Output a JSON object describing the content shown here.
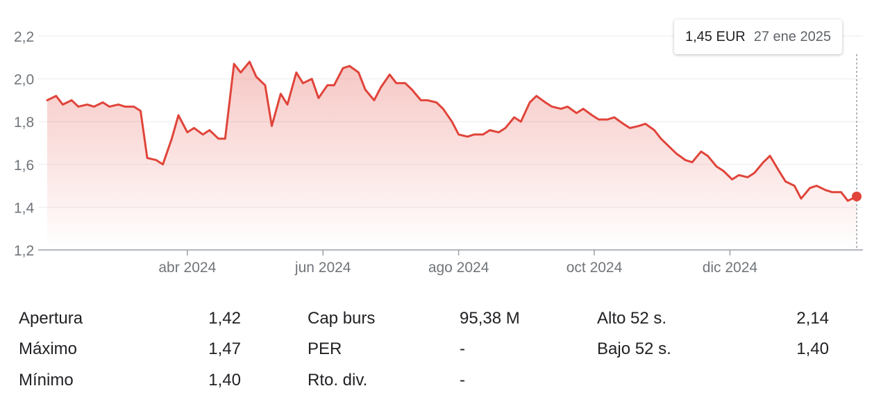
{
  "chart_data": {
    "type": "area",
    "x_start": "2024-01-29",
    "x_end": "2025-01-27",
    "y_ticks": [
      "1,2",
      "1,4",
      "1,6",
      "1,8",
      "2,0",
      "2,2"
    ],
    "y_tick_values": [
      1.2,
      1.4,
      1.6,
      1.8,
      2.0,
      2.2
    ],
    "ylim": [
      1.2,
      2.2
    ],
    "x_ticks": [
      "abr 2024",
      "jun 2024",
      "ago 2024",
      "oct 2024",
      "dic 2024"
    ],
    "x_tick_dates": [
      "2024-04-01",
      "2024-06-01",
      "2024-08-01",
      "2024-10-01",
      "2024-12-01"
    ],
    "grid": true,
    "line_color": "#e0443a",
    "series": [
      {
        "points": [
          [
            "2024-01-29",
            1.9
          ],
          [
            "2024-02-02",
            1.92
          ],
          [
            "2024-02-05",
            1.88
          ],
          [
            "2024-02-09",
            1.9
          ],
          [
            "2024-02-12",
            1.87
          ],
          [
            "2024-02-16",
            1.88
          ],
          [
            "2024-02-19",
            1.87
          ],
          [
            "2024-02-23",
            1.89
          ],
          [
            "2024-02-26",
            1.87
          ],
          [
            "2024-03-01",
            1.88
          ],
          [
            "2024-03-04",
            1.87
          ],
          [
            "2024-03-08",
            1.87
          ],
          [
            "2024-03-11",
            1.85
          ],
          [
            "2024-03-14",
            1.63
          ],
          [
            "2024-03-18",
            1.62
          ],
          [
            "2024-03-21",
            1.6
          ],
          [
            "2024-03-25",
            1.72
          ],
          [
            "2024-03-28",
            1.83
          ],
          [
            "2024-04-01",
            1.75
          ],
          [
            "2024-04-04",
            1.77
          ],
          [
            "2024-04-08",
            1.74
          ],
          [
            "2024-04-11",
            1.76
          ],
          [
            "2024-04-15",
            1.72
          ],
          [
            "2024-04-18",
            1.72
          ],
          [
            "2024-04-22",
            2.07
          ],
          [
            "2024-04-25",
            2.03
          ],
          [
            "2024-04-29",
            2.08
          ],
          [
            "2024-05-02",
            2.01
          ],
          [
            "2024-05-06",
            1.97
          ],
          [
            "2024-05-09",
            1.78
          ],
          [
            "2024-05-13",
            1.93
          ],
          [
            "2024-05-16",
            1.88
          ],
          [
            "2024-05-20",
            2.03
          ],
          [
            "2024-05-23",
            1.98
          ],
          [
            "2024-05-27",
            2.0
          ],
          [
            "2024-05-30",
            1.91
          ],
          [
            "2024-06-03",
            1.97
          ],
          [
            "2024-06-06",
            1.97
          ],
          [
            "2024-06-10",
            2.05
          ],
          [
            "2024-06-13",
            2.06
          ],
          [
            "2024-06-17",
            2.03
          ],
          [
            "2024-06-20",
            1.95
          ],
          [
            "2024-06-24",
            1.9
          ],
          [
            "2024-06-27",
            1.96
          ],
          [
            "2024-07-01",
            2.02
          ],
          [
            "2024-07-04",
            1.98
          ],
          [
            "2024-07-08",
            1.98
          ],
          [
            "2024-07-11",
            1.95
          ],
          [
            "2024-07-15",
            1.9
          ],
          [
            "2024-07-18",
            1.9
          ],
          [
            "2024-07-22",
            1.89
          ],
          [
            "2024-07-25",
            1.86
          ],
          [
            "2024-07-29",
            1.8
          ],
          [
            "2024-08-01",
            1.74
          ],
          [
            "2024-08-05",
            1.73
          ],
          [
            "2024-08-08",
            1.74
          ],
          [
            "2024-08-12",
            1.74
          ],
          [
            "2024-08-15",
            1.76
          ],
          [
            "2024-08-19",
            1.75
          ],
          [
            "2024-08-22",
            1.77
          ],
          [
            "2024-08-26",
            1.82
          ],
          [
            "2024-08-29",
            1.8
          ],
          [
            "2024-09-02",
            1.89
          ],
          [
            "2024-09-05",
            1.92
          ],
          [
            "2024-09-09",
            1.89
          ],
          [
            "2024-09-12",
            1.87
          ],
          [
            "2024-09-16",
            1.86
          ],
          [
            "2024-09-19",
            1.87
          ],
          [
            "2024-09-23",
            1.84
          ],
          [
            "2024-09-26",
            1.86
          ],
          [
            "2024-09-30",
            1.83
          ],
          [
            "2024-10-03",
            1.81
          ],
          [
            "2024-10-07",
            1.81
          ],
          [
            "2024-10-10",
            1.82
          ],
          [
            "2024-10-14",
            1.79
          ],
          [
            "2024-10-17",
            1.77
          ],
          [
            "2024-10-21",
            1.78
          ],
          [
            "2024-10-24",
            1.79
          ],
          [
            "2024-10-28",
            1.76
          ],
          [
            "2024-10-31",
            1.72
          ],
          [
            "2024-11-04",
            1.68
          ],
          [
            "2024-11-07",
            1.65
          ],
          [
            "2024-11-11",
            1.62
          ],
          [
            "2024-11-14",
            1.61
          ],
          [
            "2024-11-18",
            1.66
          ],
          [
            "2024-11-21",
            1.64
          ],
          [
            "2024-11-25",
            1.59
          ],
          [
            "2024-11-28",
            1.57
          ],
          [
            "2024-12-02",
            1.53
          ],
          [
            "2024-12-05",
            1.55
          ],
          [
            "2024-12-09",
            1.54
          ],
          [
            "2024-12-12",
            1.56
          ],
          [
            "2024-12-16",
            1.61
          ],
          [
            "2024-12-19",
            1.64
          ],
          [
            "2024-12-23",
            1.57
          ],
          [
            "2024-12-26",
            1.52
          ],
          [
            "2024-12-30",
            1.5
          ],
          [
            "2025-01-02",
            1.44
          ],
          [
            "2025-01-06",
            1.49
          ],
          [
            "2025-01-09",
            1.5
          ],
          [
            "2025-01-13",
            1.48
          ],
          [
            "2025-01-16",
            1.47
          ],
          [
            "2025-01-20",
            1.47
          ],
          [
            "2025-01-23",
            1.43
          ],
          [
            "2025-01-27",
            1.45
          ]
        ]
      }
    ]
  },
  "tooltip": {
    "price": "1,45 EUR",
    "date": "27 ene 2025"
  },
  "stats": {
    "col1": [
      {
        "label": "Apertura",
        "value": "1,42"
      },
      {
        "label": "Máximo",
        "value": "1,47"
      },
      {
        "label": "Mínimo",
        "value": "1,40"
      }
    ],
    "col2": [
      {
        "label": "Cap burs",
        "value": "95,38 M"
      },
      {
        "label": "PER",
        "value": "-"
      },
      {
        "label": "Rto. div.",
        "value": "-"
      }
    ],
    "col3": [
      {
        "label": "Alto 52 s.",
        "value": "2,14"
      },
      {
        "label": "Bajo 52 s.",
        "value": "1,40"
      }
    ]
  }
}
